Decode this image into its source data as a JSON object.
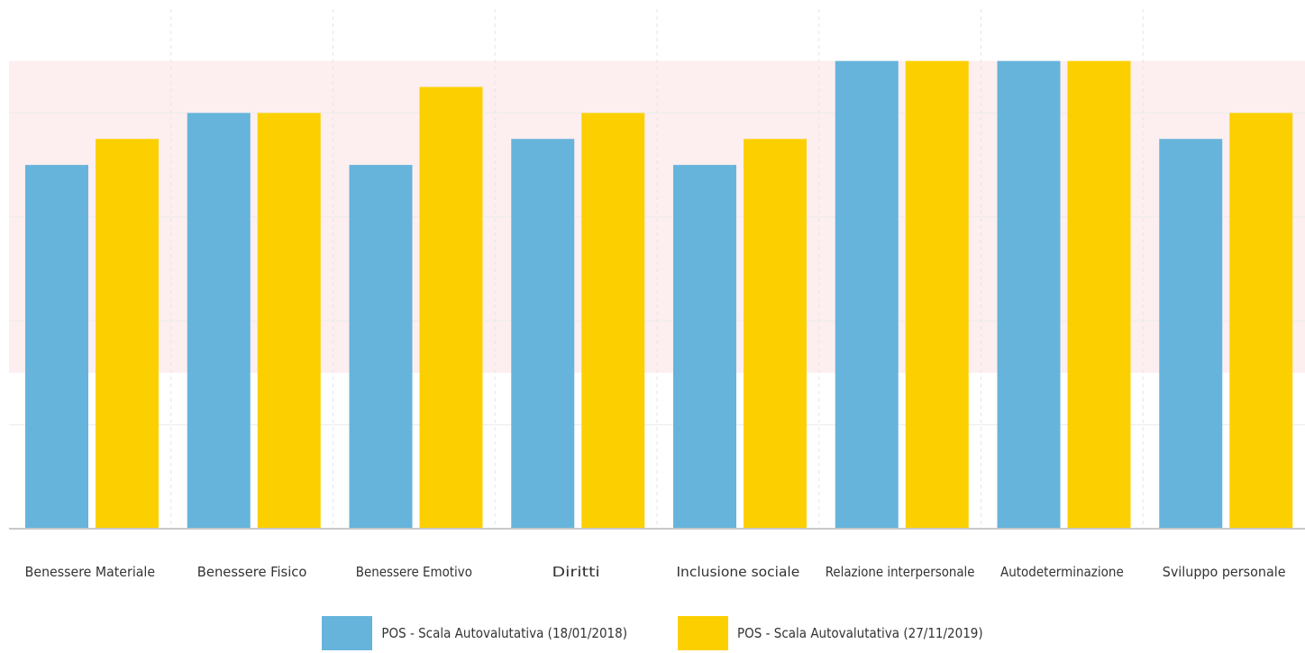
{
  "chart_data": {
    "type": "bar",
    "categories": [
      "Benessere Materiale",
      "Benessere Fisico",
      "Benessere Emotivo",
      "Diritti",
      "Inclusione sociale",
      "Relazione interpersonale",
      "Autodeterminazione",
      "Sviluppo personale"
    ],
    "series": [
      {
        "name": "POS - Scala Autovalutativa (18/01/2018)",
        "color": "#66b4db",
        "values": [
          2.8,
          3.2,
          2.8,
          3.0,
          2.8,
          3.6,
          3.6,
          3.0
        ]
      },
      {
        "name": "POS - Scala Autovalutativa (27/11/2019)",
        "color": "#fcd000",
        "values": [
          3.0,
          3.2,
          3.4,
          3.2,
          3.0,
          3.6,
          3.6,
          3.2
        ]
      }
    ],
    "ylim": [
      0,
      4
    ],
    "highlight_band": [
      1.2,
      3.6
    ],
    "highlight_color": "#fdeef0",
    "grid": true,
    "legend_position": "bottom-center",
    "title": "",
    "xlabel": "",
    "ylabel": ""
  }
}
